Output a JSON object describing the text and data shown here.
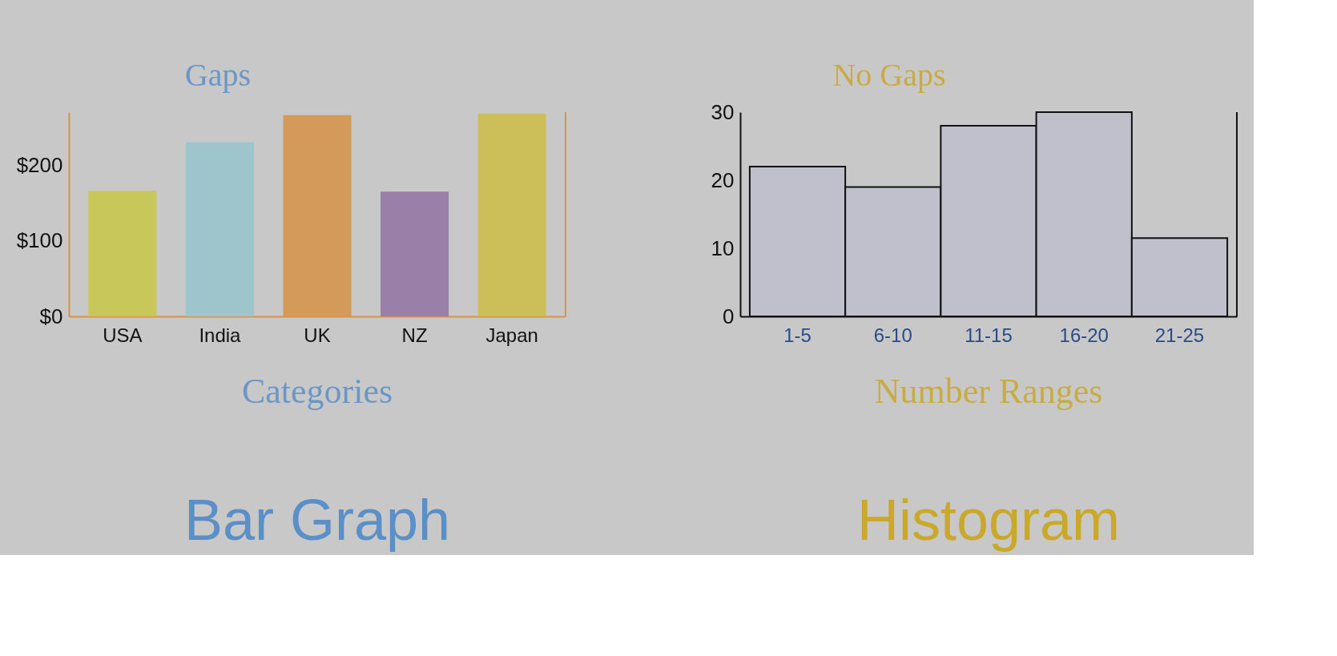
{
  "chart_data": [
    {
      "type": "bar",
      "title": "Bar Graph",
      "categories": [
        "USA",
        "India",
        "UK",
        "NZ",
        "Japan"
      ],
      "values": [
        166,
        230,
        266,
        165,
        268
      ],
      "colors": [
        "#c8c85a",
        "#9ec4cc",
        "#d49a5a",
        "#9a80a8",
        "#ccbf5a"
      ],
      "ylim": [
        0,
        270
      ],
      "yticks": [
        {
          "value": 0,
          "label": "$0"
        },
        {
          "value": 100,
          "label": "$100"
        },
        {
          "value": 200,
          "label": "$200"
        }
      ],
      "grid": false,
      "annotations": [
        "Gaps",
        "Categories"
      ]
    },
    {
      "type": "histogram",
      "title": "Histogram",
      "categories": [
        "1-5",
        "6-10",
        "11-15",
        "16-20",
        "21-25"
      ],
      "values": [
        22,
        19,
        28,
        30,
        11.5
      ],
      "color": "#c0bfcc",
      "ylim": [
        0,
        30
      ],
      "yticks": [
        0,
        10,
        20,
        30
      ],
      "grid": false,
      "annotations": [
        "No Gaps",
        "Number Ranges"
      ]
    }
  ]
}
